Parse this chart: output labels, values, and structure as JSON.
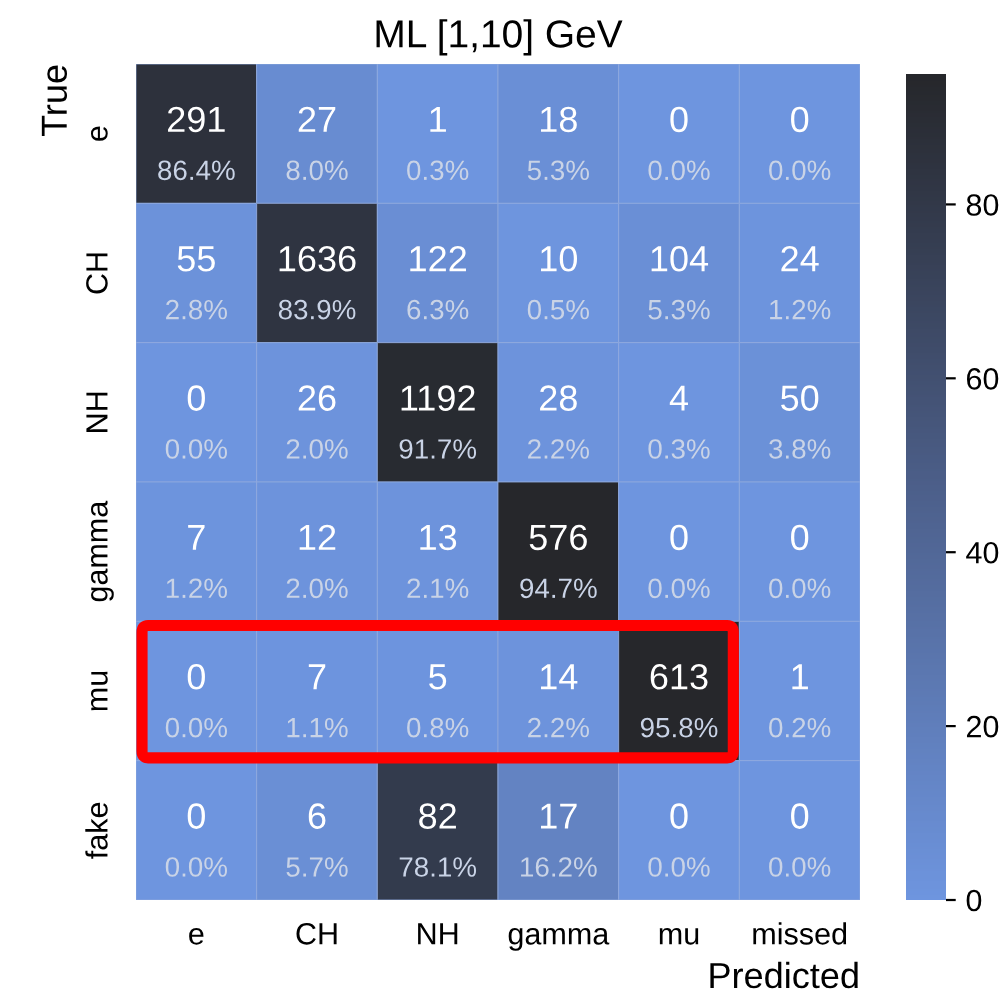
{
  "chart_data": {
    "type": "heatmap",
    "title": "ML [1,10] GeV",
    "xlabel": "Predicted",
    "ylabel": "True",
    "categories": [
      "e",
      "CH",
      "NH",
      "gamma",
      "mu",
      "missed"
    ],
    "y_categories": [
      "e",
      "CH",
      "NH",
      "gamma",
      "mu",
      "fake"
    ],
    "cells": [
      [
        86.4,
        8.0,
        0.3,
        5.3,
        0.0,
        0.0
      ],
      [
        2.8,
        83.9,
        6.3,
        0.5,
        5.3,
        1.2
      ],
      [
        0.0,
        2.0,
        91.7,
        2.2,
        0.3,
        3.8
      ],
      [
        1.2,
        2.0,
        2.1,
        94.7,
        0.0,
        0.0
      ],
      [
        0.0,
        1.1,
        0.8,
        2.2,
        95.8,
        0.2
      ],
      [
        0.0,
        5.7,
        78.1,
        16.2,
        0.0,
        0.0
      ]
    ],
    "cell_labels": [
      [
        "291\n86.4%",
        "27\n8.0%",
        "1\n0.3%",
        "18\n5.3%",
        "0\n0.0%",
        "0\n0.0%"
      ],
      [
        "55\n2.8%",
        "1636\n83.9%",
        "122\n6.3%",
        "10\n0.5%",
        "104\n5.3%",
        "24\n1.2%"
      ],
      [
        "0\n0.0%",
        "26\n2.0%",
        "1192\n91.7%",
        "28\n2.2%",
        "4\n0.3%",
        "50\n3.8%"
      ],
      [
        "7\n1.2%",
        "12\n2.0%",
        "13\n2.1%",
        "576\n94.7%",
        "0\n0.0%",
        "0\n0.0%"
      ],
      [
        "0\n0.0%",
        "7\n1.1%",
        "5\n0.8%",
        "14\n2.2%",
        "613\n95.8%",
        "1\n0.2%"
      ],
      [
        "0\n0.0%",
        "6\n5.7%",
        "82\n78.1%",
        "17\n16.2%",
        "0\n0.0%",
        "0\n0.0%"
      ]
    ],
    "clim": [
      0,
      95
    ],
    "cticks": [
      0,
      20,
      40,
      60,
      80
    ]
  }
}
